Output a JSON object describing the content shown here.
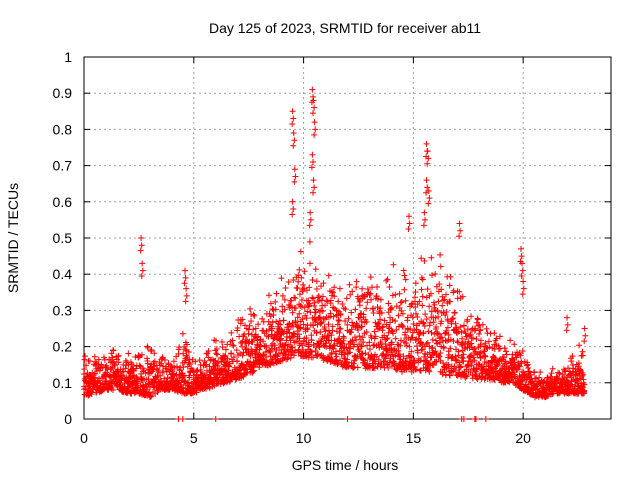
{
  "chart_data": {
    "type": "scatter",
    "title": "Day 125 of 2023, SRMTID for receiver ab11",
    "xlabel": "GPS time / hours",
    "ylabel": "SRMTID / TECUs",
    "xlim": [
      0,
      24
    ],
    "ylim": [
      0,
      1
    ],
    "xticks": [
      0,
      5,
      10,
      15,
      20
    ],
    "xtick_labels": [
      "0",
      "5",
      "10",
      "15",
      "20"
    ],
    "yticks": [
      0,
      0.1,
      0.2,
      0.3,
      0.4,
      0.5,
      0.6,
      0.7,
      0.8,
      0.9,
      1
    ],
    "ytick_labels": [
      "0",
      "0.1",
      "0.2",
      "0.3",
      "0.4",
      "0.5",
      "0.6",
      "0.7",
      "0.8",
      "0.9",
      "1"
    ],
    "grid": true,
    "marker": "+",
    "color": "#ff0000",
    "envelope": {
      "x": [
        0,
        0.5,
        1,
        1.5,
        2,
        2.5,
        3,
        3.5,
        4,
        4.5,
        5,
        5.5,
        6,
        6.5,
        7,
        7.5,
        8,
        8.5,
        9,
        9.5,
        10,
        10.5,
        11,
        11.5,
        12,
        12.5,
        13,
        13.5,
        14,
        14.5,
        15,
        15.5,
        16,
        16.5,
        17,
        17.5,
        18,
        18.5,
        19,
        19.5,
        20,
        20.5,
        21,
        21.5,
        22,
        22.5,
        22.8
      ],
      "low": [
        0.06,
        0.07,
        0.08,
        0.08,
        0.07,
        0.07,
        0.06,
        0.08,
        0.08,
        0.07,
        0.07,
        0.08,
        0.09,
        0.1,
        0.11,
        0.12,
        0.14,
        0.15,
        0.16,
        0.17,
        0.17,
        0.17,
        0.16,
        0.15,
        0.14,
        0.14,
        0.14,
        0.14,
        0.14,
        0.13,
        0.13,
        0.13,
        0.13,
        0.12,
        0.12,
        0.11,
        0.11,
        0.11,
        0.1,
        0.1,
        0.08,
        0.06,
        0.06,
        0.07,
        0.07,
        0.07,
        0.07
      ],
      "high": [
        0.2,
        0.19,
        0.2,
        0.2,
        0.2,
        0.2,
        0.24,
        0.2,
        0.16,
        0.27,
        0.16,
        0.18,
        0.24,
        0.25,
        0.3,
        0.32,
        0.33,
        0.36,
        0.4,
        0.46,
        0.55,
        0.5,
        0.46,
        0.42,
        0.42,
        0.42,
        0.42,
        0.42,
        0.43,
        0.45,
        0.46,
        0.47,
        0.47,
        0.44,
        0.42,
        0.36,
        0.32,
        0.28,
        0.26,
        0.22,
        0.22,
        0.14,
        0.14,
        0.15,
        0.2,
        0.22,
        0.2
      ]
    },
    "spikes": [
      {
        "x": 2.6,
        "y": 0.5
      },
      {
        "x": 2.65,
        "y": 0.43
      },
      {
        "x": 4.6,
        "y": 0.41
      },
      {
        "x": 4.65,
        "y": 0.36
      },
      {
        "x": 9.5,
        "y": 0.85
      },
      {
        "x": 9.55,
        "y": 0.79
      },
      {
        "x": 9.6,
        "y": 0.69
      },
      {
        "x": 9.5,
        "y": 0.6
      },
      {
        "x": 10.4,
        "y": 0.91
      },
      {
        "x": 10.45,
        "y": 0.88
      },
      {
        "x": 10.5,
        "y": 0.82
      },
      {
        "x": 10.4,
        "y": 0.73
      },
      {
        "x": 10.45,
        "y": 0.66
      },
      {
        "x": 10.3,
        "y": 0.57
      },
      {
        "x": 14.8,
        "y": 0.56
      },
      {
        "x": 15.6,
        "y": 0.76
      },
      {
        "x": 15.65,
        "y": 0.74
      },
      {
        "x": 15.6,
        "y": 0.66
      },
      {
        "x": 15.7,
        "y": 0.63
      },
      {
        "x": 15.5,
        "y": 0.57
      },
      {
        "x": 17.1,
        "y": 0.54
      },
      {
        "x": 19.9,
        "y": 0.47
      },
      {
        "x": 19.95,
        "y": 0.43
      },
      {
        "x": 20.0,
        "y": 0.38
      },
      {
        "x": 22.0,
        "y": 0.28
      },
      {
        "x": 22.8,
        "y": 0.25
      }
    ],
    "zero_markers": [
      4.3,
      4.5,
      6.0,
      12.0,
      17.2,
      17.3,
      17.8,
      17.85,
      18.3
    ]
  }
}
